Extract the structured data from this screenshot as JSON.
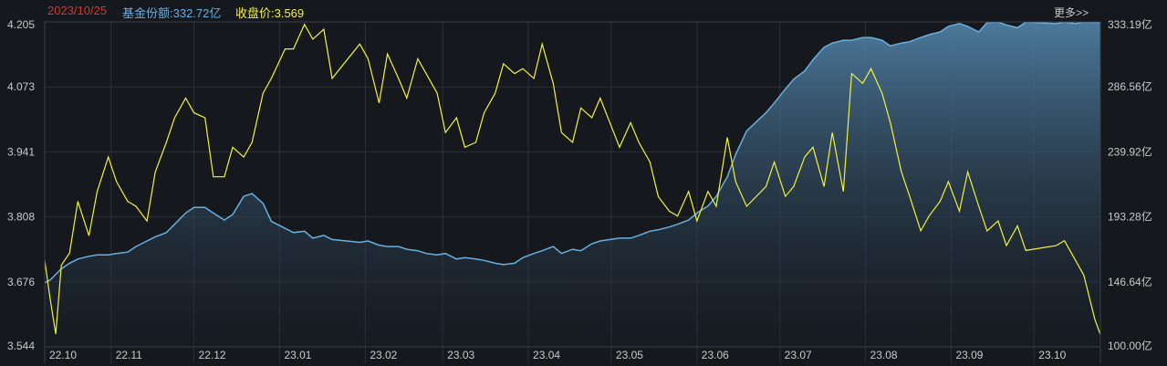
{
  "header": {
    "date": "2023/10/25",
    "shares_label": "基金份额:332.72亿",
    "close_label": "收盘价:3.569",
    "more_label": "更多>>"
  },
  "colors": {
    "background": "#15181d",
    "grid": "#2c3038",
    "date": "#e0302a",
    "shares": "#6ab0de",
    "close": "#f2f23a"
  },
  "chart_data": {
    "type": "line",
    "x": [
      "2022-10-08",
      "2022-10-10",
      "2022-10-12",
      "2022-10-14",
      "2022-10-17",
      "2022-10-20",
      "2022-10-24",
      "2022-10-27",
      "2022-10-31",
      "2022-11-03",
      "2022-11-07",
      "2022-11-10",
      "2022-11-14",
      "2022-11-17",
      "2022-11-21",
      "2022-11-24",
      "2022-11-28",
      "2022-12-01",
      "2022-12-05",
      "2022-12-08",
      "2022-12-12",
      "2022-12-15",
      "2022-12-19",
      "2022-12-22",
      "2022-12-26",
      "2022-12-29",
      "2023-01-03",
      "2023-01-06",
      "2023-01-10",
      "2023-01-13",
      "2023-01-17",
      "2023-01-20",
      "2023-01-30",
      "2023-02-02",
      "2023-02-06",
      "2023-02-09",
      "2023-02-13",
      "2023-02-16",
      "2023-02-20",
      "2023-02-23",
      "2023-02-27",
      "2023-03-02",
      "2023-03-06",
      "2023-03-09",
      "2023-03-13",
      "2023-03-16",
      "2023-03-20",
      "2023-03-23",
      "2023-03-27",
      "2023-03-30",
      "2023-04-03",
      "2023-04-06",
      "2023-04-10",
      "2023-04-13",
      "2023-04-17",
      "2023-04-20",
      "2023-04-24",
      "2023-04-27",
      "2023-05-04",
      "2023-05-08",
      "2023-05-11",
      "2023-05-15",
      "2023-05-18",
      "2023-05-22",
      "2023-05-25",
      "2023-05-29",
      "2023-06-01",
      "2023-06-05",
      "2023-06-08",
      "2023-06-12",
      "2023-06-15",
      "2023-06-19",
      "2023-06-26",
      "2023-06-29",
      "2023-07-03",
      "2023-07-06",
      "2023-07-10",
      "2023-07-13",
      "2023-07-17",
      "2023-07-20",
      "2023-07-24",
      "2023-07-27",
      "2023-07-31",
      "2023-08-03",
      "2023-08-07",
      "2023-08-10",
      "2023-08-14",
      "2023-08-17",
      "2023-08-21",
      "2023-08-24",
      "2023-08-28",
      "2023-08-31",
      "2023-09-04",
      "2023-09-07",
      "2023-09-11",
      "2023-09-14",
      "2023-09-18",
      "2023-09-21",
      "2023-09-25",
      "2023-09-28",
      "2023-10-09",
      "2023-10-12",
      "2023-10-16",
      "2023-10-19",
      "2023-10-23",
      "2023-10-25"
    ],
    "series": [
      {
        "name": "收盘价",
        "axis": "left",
        "color": "#f2f23a",
        "values": [
          3.72,
          3.64,
          3.57,
          3.71,
          3.735,
          3.84,
          3.77,
          3.86,
          3.93,
          3.88,
          3.84,
          3.83,
          3.8,
          3.9,
          3.96,
          4.01,
          4.05,
          4.02,
          4.01,
          3.89,
          3.89,
          3.95,
          3.93,
          3.96,
          4.06,
          4.09,
          4.15,
          4.15,
          4.2,
          4.17,
          4.19,
          4.09,
          4.16,
          4.13,
          4.04,
          4.14,
          4.09,
          4.05,
          4.13,
          4.1,
          4.06,
          3.98,
          4.01,
          3.95,
          3.96,
          4.02,
          4.06,
          4.12,
          4.1,
          4.11,
          4.09,
          4.16,
          4.08,
          3.98,
          3.96,
          4.03,
          4.01,
          4.05,
          3.95,
          4.0,
          3.96,
          3.92,
          3.85,
          3.82,
          3.81,
          3.86,
          3.8,
          3.86,
          3.83,
          3.97,
          3.88,
          3.83,
          3.87,
          3.92,
          3.85,
          3.87,
          3.93,
          3.95,
          3.87,
          3.98,
          3.86,
          4.1,
          4.08,
          4.11,
          4.06,
          4.0,
          3.9,
          3.85,
          3.78,
          3.81,
          3.84,
          3.88,
          3.82,
          3.9,
          3.83,
          3.78,
          3.8,
          3.75,
          3.79,
          3.74,
          3.75,
          3.76,
          3.72,
          3.69,
          3.6,
          3.569
        ]
      },
      {
        "name": "基金份额",
        "axis": "right",
        "color": "#6ab0de",
        "values": [
          146,
          148,
          152,
          156,
          160,
          163,
          165,
          166,
          166,
          167,
          168,
          172,
          176,
          179,
          182,
          188,
          196,
          200,
          200,
          196,
          191,
          195,
          208,
          210,
          203,
          190,
          185,
          182,
          183,
          178,
          180,
          177,
          175,
          176,
          173,
          172,
          172,
          170,
          169,
          167,
          166,
          167,
          163,
          164,
          163,
          162,
          160,
          159,
          160,
          164,
          167,
          169,
          172,
          167,
          170,
          169,
          174,
          176,
          178,
          178,
          180,
          183,
          184,
          186,
          188,
          191,
          196,
          201,
          208,
          222,
          238,
          255,
          268,
          275,
          285,
          292,
          298,
          306,
          315,
          318,
          320,
          320,
          322,
          322,
          320,
          316,
          318,
          319,
          322,
          324,
          326,
          330,
          332,
          330,
          326,
          332.72,
          333,
          331,
          329,
          333,
          332,
          333,
          332,
          333,
          332.72,
          332.72
        ]
      }
    ],
    "left_axis": {
      "ticks": [
        "3.544",
        "3.676",
        "3.808",
        "3.941",
        "4.073",
        "4.205"
      ],
      "range": [
        3.544,
        4.205
      ]
    },
    "right_axis": {
      "ticks": [
        "100.00亿",
        "146.64亿",
        "193.28亿",
        "239.92亿",
        "286.56亿",
        "333.19亿"
      ],
      "range": [
        100.0,
        333.19
      ]
    },
    "x_ticks": [
      "22.10",
      "22.11",
      "22.12",
      "23.01",
      "23.02",
      "23.03",
      "23.04",
      "23.05",
      "23.06",
      "23.07",
      "23.08",
      "23.09",
      "23.10"
    ],
    "grid": true
  }
}
